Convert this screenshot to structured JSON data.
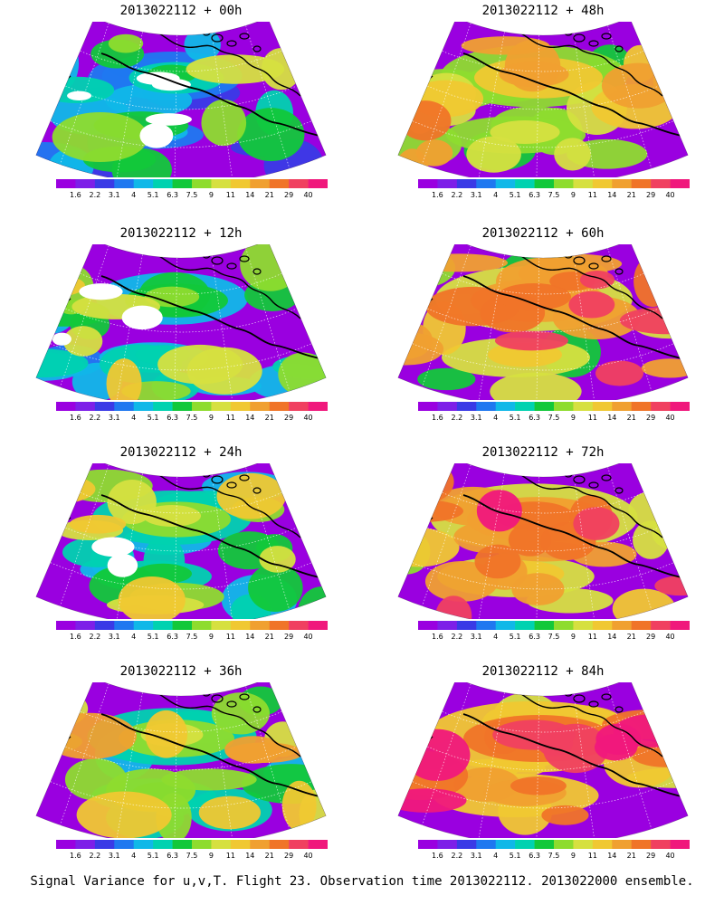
{
  "panels": [
    {
      "title": "2013022112 + 00h",
      "intensity": 0.25
    },
    {
      "title": "2013022112 + 48h",
      "intensity": 0.62
    },
    {
      "title": "2013022112 + 12h",
      "intensity": 0.34
    },
    {
      "title": "2013022112 + 60h",
      "intensity": 0.7
    },
    {
      "title": "2013022112 + 24h",
      "intensity": 0.4
    },
    {
      "title": "2013022112 + 72h",
      "intensity": 0.78
    },
    {
      "title": "2013022112 + 36h",
      "intensity": 0.48
    },
    {
      "title": "2013022112 + 84h",
      "intensity": 0.86
    }
  ],
  "colorbar": {
    "labels": [
      "1.6",
      "2.2",
      "3.1",
      "4",
      "5.1",
      "6.3",
      "7.5",
      "9",
      "11",
      "14",
      "21",
      "29",
      "40"
    ],
    "colors": [
      "#9a00e0",
      "#7d1fe8",
      "#3a3ae6",
      "#1f78f0",
      "#10b8e8",
      "#00d2b0",
      "#12c83a",
      "#8edc2e",
      "#d6e040",
      "#f0c832",
      "#f0a030",
      "#f07428",
      "#f04060",
      "#f0187c"
    ]
  },
  "footer": "Signal Variance for u,v,T. Flight 23. Observation time 2013022112. 2013022000 ensemble."
}
